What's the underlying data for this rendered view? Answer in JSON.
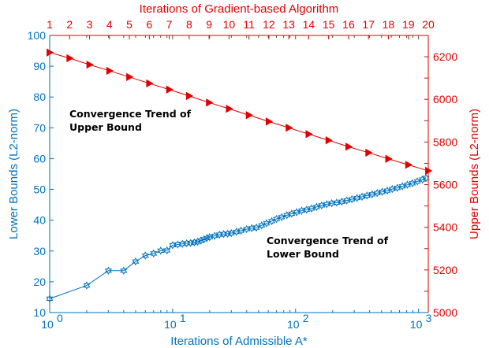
{
  "chart_data": {
    "type": "line",
    "colors": {
      "lower": "#0072bd",
      "upper": "#e00000",
      "axes": "#262626"
    },
    "axes": {
      "x_bottom": {
        "label": "Iterations of Admissible A*",
        "scale": "log",
        "range": [
          1,
          1200
        ],
        "ticks": [
          "10",
          "10",
          "10",
          "10"
        ],
        "tick_values": [
          1,
          10,
          100,
          1000
        ],
        "tick_exponents": [
          "0",
          "1",
          "2",
          "3"
        ]
      },
      "x_top": {
        "label": "Iterations of Gradient-based Algorithm",
        "scale": "linear",
        "range": [
          1,
          20
        ],
        "ticks": [
          "1",
          "2",
          "3",
          "4",
          "5",
          "6",
          "7",
          "8",
          "9",
          "10",
          "11",
          "12",
          "13",
          "14",
          "15",
          "16",
          "17",
          "18",
          "19",
          "20"
        ]
      },
      "y_left": {
        "label": "Lower Bounds (L2-norm)",
        "range": [
          10,
          100
        ],
        "ticks": [
          "10",
          "20",
          "30",
          "40",
          "50",
          "60",
          "70",
          "80",
          "90",
          "100"
        ]
      },
      "y_right": {
        "label": "Upper Bounds (L2-norm)",
        "range": [
          5000,
          6300
        ],
        "ticks": [
          "5000",
          "5200",
          "5400",
          "5600",
          "5800",
          "6000",
          "6200"
        ]
      }
    },
    "series": [
      {
        "axis_x": "x_bottom",
        "axis_y": "y_left",
        "marker": "hexagram",
        "x": [
          1,
          2,
          3,
          4,
          5,
          6,
          7,
          8,
          9,
          10,
          11,
          12,
          13,
          14,
          15,
          16,
          17,
          18,
          19,
          20,
          22,
          24,
          26,
          28,
          30,
          33,
          36,
          40,
          44,
          48,
          53,
          58,
          64,
          70,
          77,
          85,
          93,
          102,
          112,
          123,
          135,
          148,
          163,
          179,
          197,
          216,
          238,
          261,
          287,
          316,
          347,
          381,
          419,
          461,
          506,
          556,
          611,
          672,
          738,
          811,
          891,
          979,
          1076,
          1150
        ],
        "y": [
          14.5,
          18.8,
          23.6,
          23.6,
          26.6,
          28.5,
          29.2,
          30.1,
          30.2,
          31.9,
          32.1,
          32.3,
          32.5,
          32.6,
          32.8,
          33.0,
          33.4,
          33.8,
          34.2,
          34.5,
          34.9,
          35.3,
          35.5,
          35.6,
          35.8,
          36.2,
          36.6,
          37.1,
          37.4,
          37.6,
          38.3,
          39.0,
          39.7,
          40.4,
          41.0,
          41.6,
          42.1,
          42.6,
          43.1,
          43.4,
          43.8,
          44.3,
          44.8,
          45.2,
          45.5,
          45.7,
          46.0,
          46.4,
          46.8,
          47.2,
          47.6,
          48.0,
          48.4,
          48.8,
          49.2,
          49.6,
          50.1,
          50.5,
          51.0,
          51.5,
          52.0,
          52.6,
          53.2,
          53.7
        ]
      },
      {
        "axis_x": "x_top",
        "axis_y": "y_right",
        "marker": "triangle-right",
        "x": [
          1,
          2,
          3,
          4,
          5,
          6,
          7,
          8,
          9,
          10,
          11,
          12,
          13,
          14,
          15,
          16,
          17,
          18,
          19,
          20
        ],
        "y": [
          6220,
          6193,
          6163,
          6134,
          6105,
          6075,
          6046,
          6016,
          5985,
          5956,
          5926,
          5896,
          5867,
          5837,
          5808,
          5778,
          5750,
          5721,
          5693,
          5665
        ]
      }
    ],
    "annotations": [
      {
        "lines": [
          "Convergence Trend of",
          "Upper Bound"
        ]
      },
      {
        "lines": [
          "Convergence Trend of",
          "Lower Bound"
        ]
      }
    ]
  }
}
